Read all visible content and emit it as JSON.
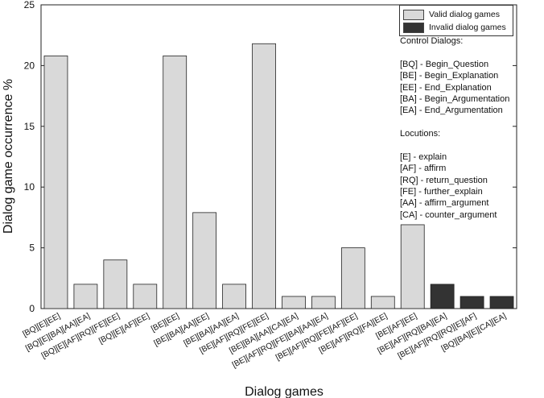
{
  "chart_data": {
    "type": "bar",
    "xlabel": "Dialog games",
    "ylabel": "Dialog game occurrence %",
    "ylim": [
      0,
      25
    ],
    "yticks": [
      0,
      5,
      10,
      15,
      20,
      25
    ],
    "grid": false,
    "legend_position": "top-right",
    "categories": [
      "[BQ][E][EE]",
      "[BQ][E][BA][AA][EA]",
      "[BQ][E][AF][RQ][FE][EE]",
      "[BQ][E][AF][EE]",
      "[BE][EE]",
      "[BE][BA][AA][EE]",
      "[BE][BA][AA][EA]",
      "[BE][AF][RQ][FE][EE]",
      "[BE][BA][AA][CA][EA]",
      "[BE][AF][RQ][FE][BA][AA][EA]",
      "[BE][AF][RQ][FE][AF][EE]",
      "[BE][AF][RQ][FA][EE]",
      "[BE][AF][EE]",
      "[BE][AF][RQ][BA][EA]",
      "[BE][AF][RQ][RQ][E][AF]",
      "[BQ][BA][E][CA][EA]"
    ],
    "values": [
      20.8,
      2,
      4,
      2,
      20.8,
      7.9,
      2,
      21.8,
      1,
      1,
      5,
      1,
      6.9,
      2,
      1,
      1
    ],
    "valid": [
      true,
      true,
      true,
      true,
      true,
      true,
      true,
      true,
      true,
      true,
      true,
      true,
      true,
      false,
      false,
      false
    ],
    "legend": [
      {
        "label": "Valid dialog games",
        "color": "#d9d9d9"
      },
      {
        "label": "Invalid dialog games",
        "color": "#333333"
      }
    ]
  },
  "notes": {
    "control_title": "Control Dialogs:",
    "control_items": [
      "[BQ] - Begin_Question",
      "[BE] - Begin_Explanation",
      "[EE] - End_Explanation",
      "[BA] - Begin_Argumentation",
      "[EA] - End_Argumentation"
    ],
    "locutions_title": "Locutions:",
    "locution_items": [
      "[E] - explain",
      "[AF] - affirm",
      "[RQ] - return_question",
      "[FE] - further_explain",
      "[AA] - affirm_argument",
      "[CA] - counter_argument"
    ]
  }
}
